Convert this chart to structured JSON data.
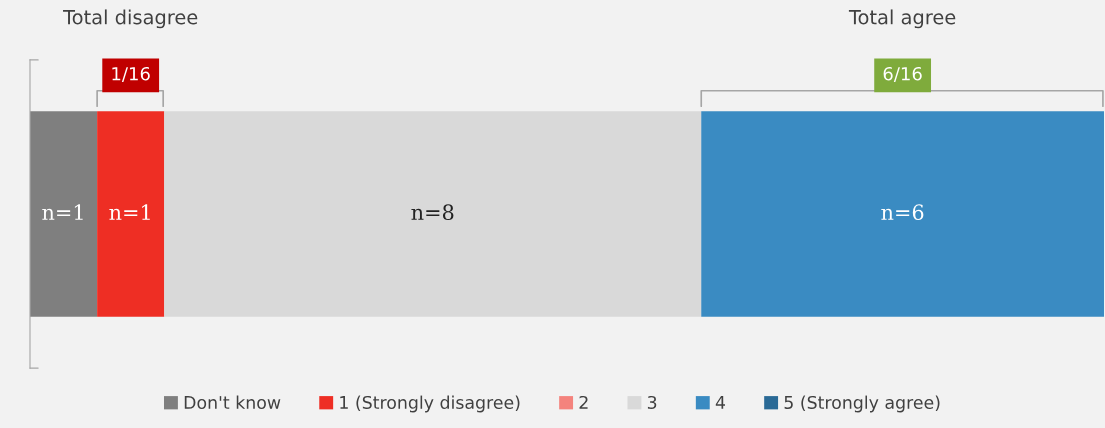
{
  "chart_data": {
    "type": "bar",
    "orientation": "horizontal",
    "stacked": true,
    "categories": [
      null
    ],
    "legend": "bottom",
    "annotations": [
      "Total disagree",
      "Total agree",
      "1/16",
      "6/16"
    ],
    "series": [
      {
        "name": "Don't know",
        "color": "#7f7f7f",
        "values": [
          1
        ],
        "value_labels": [
          "n=1"
        ]
      },
      {
        "name": "1 (Strongly disagree)",
        "color": "#ee2e24",
        "values": [
          1
        ],
        "value_labels": [
          "n=1"
        ]
      },
      {
        "name": "2",
        "color": "#f4837d",
        "values": [
          0
        ],
        "value_labels": [
          null
        ]
      },
      {
        "name": "3",
        "color": "#d9d9d9",
        "values": [
          8
        ],
        "value_labels": [
          "n=8"
        ]
      },
      {
        "name": "4",
        "color": "#3a8bc2",
        "values": [
          6
        ],
        "value_labels": [
          "n=6"
        ]
      },
      {
        "name": "5 (Strongly agree)",
        "color": "#2a6a96",
        "values": [
          0
        ],
        "value_labels": [
          null
        ]
      }
    ]
  }
}
